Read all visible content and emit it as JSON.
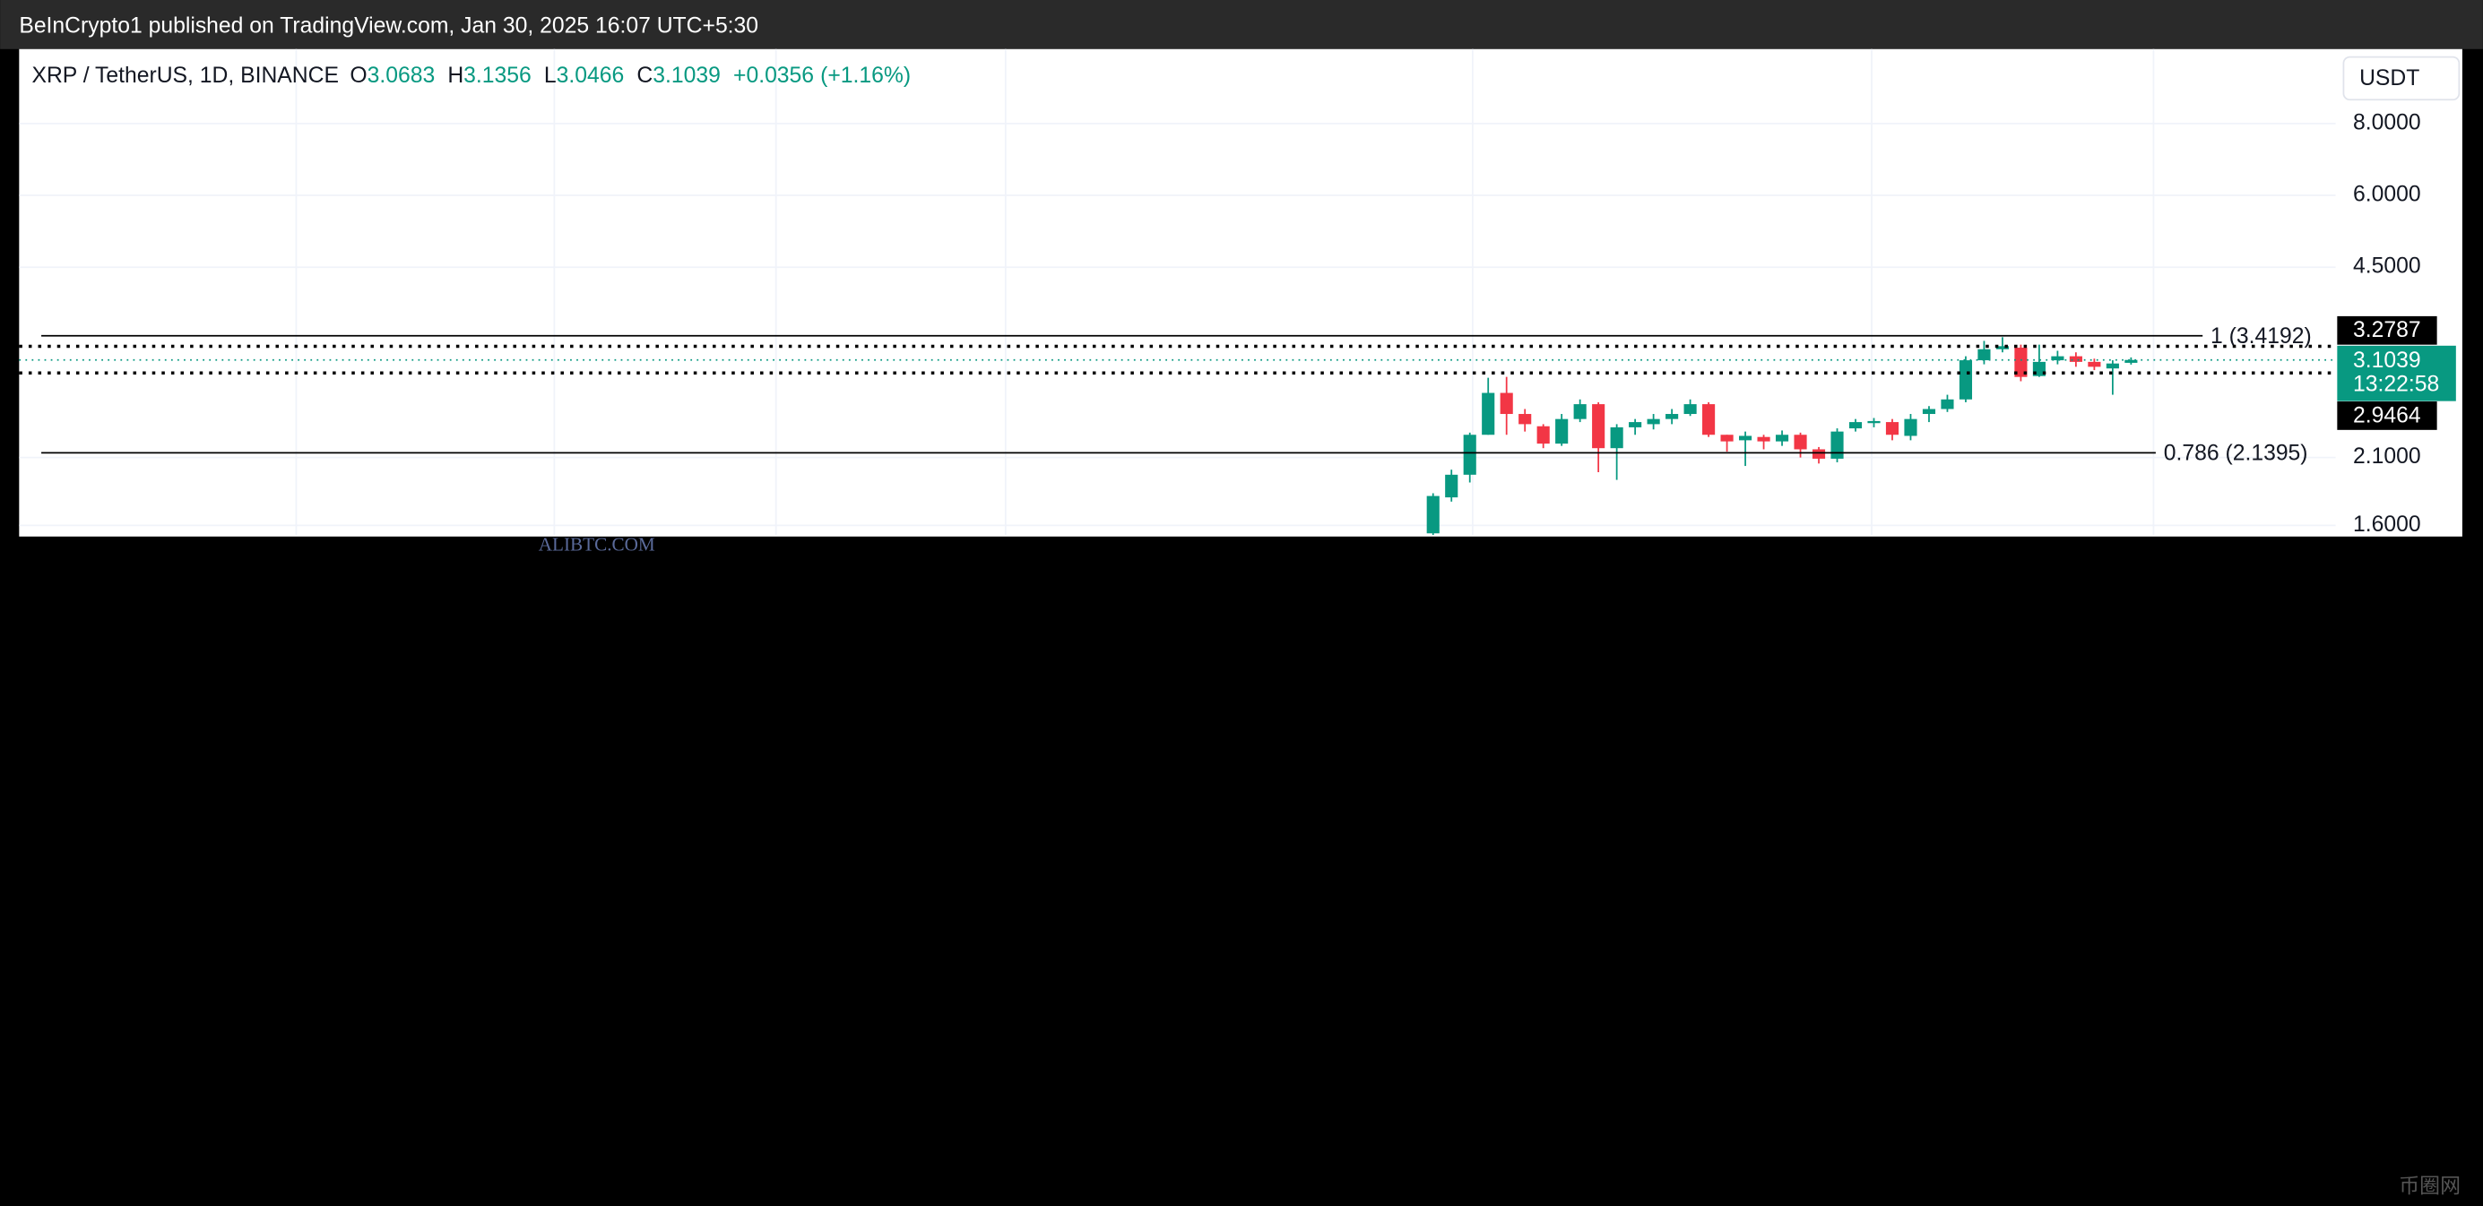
{
  "header": {
    "text": "BeInCrypto1 published on TradingView.com, Jan 30, 2025 16:07 UTC+5:30"
  },
  "watermark": "ALIBTC.COM",
  "corner_logo": "币圈网",
  "chart_data": {
    "type": "candlestick",
    "title": "XRP / TetherUS, 1D, BINANCE",
    "ohlc_labels": [
      "O",
      "H",
      "L",
      "C"
    ],
    "change": {
      "value": 0.0356,
      "label": "+0.0356"
    },
    "change_percent": {
      "value": 1.16,
      "label": "(+1.16%)"
    },
    "axis_unit": "USDT",
    "log": true,
    "grid": true,
    "up_color": "#089981",
    "down_color": "#f23645",
    "ylim": [
      1.54,
      10.78
    ],
    "yticks": [
      {
        "value": 8,
        "label": "8.0000"
      },
      {
        "value": 6,
        "label": "6.0000"
      },
      {
        "value": 4.5,
        "label": "4.5000"
      },
      {
        "value": 2.1,
        "label": "2.1000"
      },
      {
        "value": 1.6,
        "label": "1.6000"
      }
    ],
    "open": [
      1.55,
      1.79,
      1.96,
      2.3,
      2.72,
      2.5,
      2.38,
      2.22,
      2.45,
      2.6,
      2.18,
      2.37,
      2.4,
      2.45,
      2.5,
      2.6,
      2.3,
      2.25,
      2.28,
      2.24,
      2.3,
      2.17,
      2.09,
      2.36,
      2.41,
      2.42,
      2.29,
      2.5,
      2.55,
      2.65,
      3.1,
      3.24,
      3.26,
      2.91,
      3.1,
      3.15,
      3.08,
      3.0,
      3.0683
    ],
    "high": [
      1.82,
      2.0,
      2.32,
      2.89,
      2.9,
      2.55,
      2.4,
      2.5,
      2.65,
      2.62,
      2.4,
      2.45,
      2.5,
      2.55,
      2.65,
      2.62,
      2.3,
      2.33,
      2.3,
      2.34,
      2.32,
      2.19,
      2.36,
      2.45,
      2.46,
      2.45,
      2.5,
      2.58,
      2.7,
      3.15,
      3.35,
      3.4,
      3.3,
      3.3,
      3.22,
      3.2,
      3.12,
      3.1,
      3.1356
    ],
    "low": [
      1.54,
      1.76,
      1.9,
      2.3,
      2.3,
      2.33,
      2.18,
      2.2,
      2.42,
      1.98,
      1.92,
      2.3,
      2.35,
      2.4,
      2.48,
      2.28,
      2.15,
      2.03,
      2.17,
      2.2,
      2.1,
      2.05,
      2.06,
      2.33,
      2.37,
      2.25,
      2.25,
      2.42,
      2.52,
      2.62,
      3.05,
      3.2,
      2.85,
      2.9,
      3.05,
      3.02,
      2.98,
      2.7,
      3.0466
    ],
    "close": [
      1.8,
      1.96,
      2.3,
      2.72,
      2.5,
      2.4,
      2.22,
      2.45,
      2.6,
      2.18,
      2.37,
      2.42,
      2.45,
      2.5,
      2.6,
      2.3,
      2.24,
      2.29,
      2.24,
      2.3,
      2.17,
      2.09,
      2.33,
      2.42,
      2.43,
      2.3,
      2.45,
      2.55,
      2.65,
      3.1,
      3.24,
      3.28,
      2.9,
      3.08,
      3.15,
      3.08,
      3.02,
      3.06,
      3.1039
    ],
    "levels": [
      {
        "value": 3.4192,
        "label": "1 (3.4192)",
        "style": "solid"
      },
      {
        "value": 2.1395,
        "label": "0.786 (2.1395)",
        "style": "solid"
      },
      {
        "value": 3.2787,
        "style": "dotted"
      },
      {
        "value": 2.9464,
        "style": "dotted"
      }
    ],
    "countdown": "13:22:58"
  }
}
